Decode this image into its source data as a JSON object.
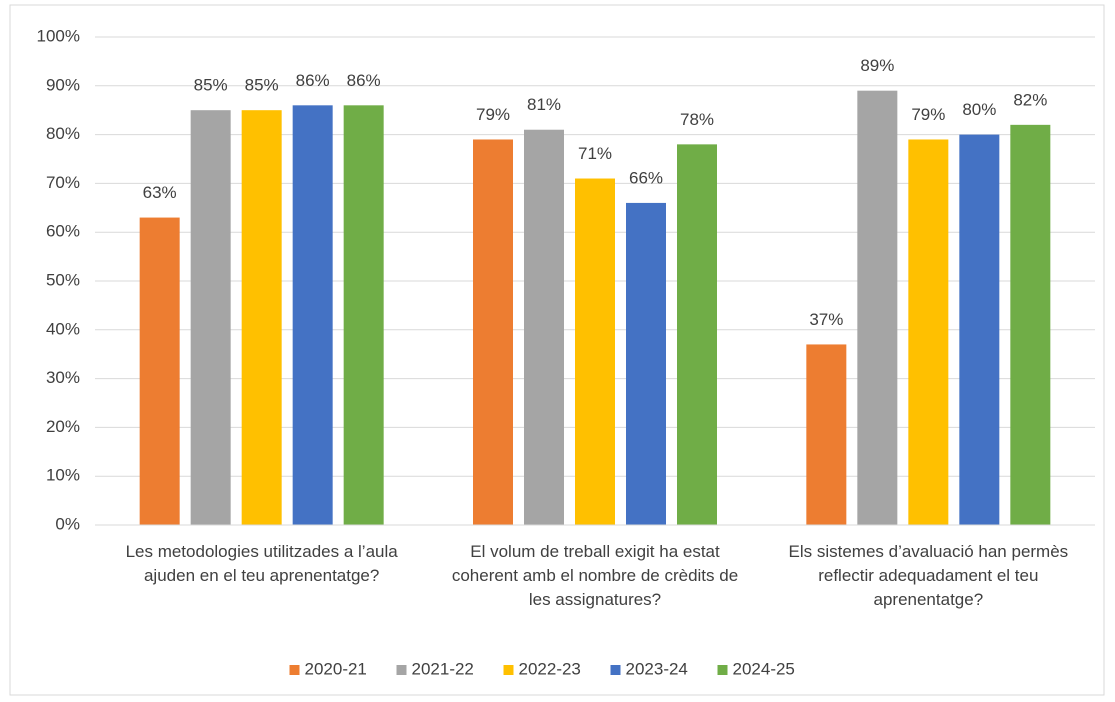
{
  "chart_data": {
    "type": "bar",
    "categories": [
      "Les metodologies utilitzades a l’aula ajuden en el teu aprenentatge?",
      "El volum de treball exigit ha estat coherent amb el nombre de crèdits de les assignatures?",
      "Els sistemes d’avaluació han permès reflectir adequadament el teu aprenentatge?"
    ],
    "series": [
      {
        "name": "2020-21",
        "color": "#ed7d31",
        "values": [
          63,
          79,
          37
        ],
        "value_labels": [
          "63%",
          "79%",
          "37%"
        ]
      },
      {
        "name": "2021-22",
        "color": "#a5a5a5",
        "values": [
          85,
          81,
          89
        ],
        "value_labels": [
          "85%",
          "81%",
          "89%"
        ]
      },
      {
        "name": "2022-23",
        "color": "#ffc000",
        "values": [
          85,
          71,
          79
        ],
        "value_labels": [
          "85%",
          "71%",
          "79%"
        ]
      },
      {
        "name": "2023-24",
        "color": "#4472c4",
        "values": [
          86,
          66,
          80
        ],
        "value_labels": [
          "86%",
          "66%",
          "80%"
        ]
      },
      {
        "name": "2024-25",
        "color": "#70ad47",
        "values": [
          86,
          78,
          82
        ],
        "value_labels": [
          "86%",
          "78%",
          "82%"
        ]
      }
    ],
    "ylim": [
      0,
      100
    ],
    "yticks": [
      {
        "value": 0,
        "label": "0%"
      },
      {
        "value": 10,
        "label": "10%"
      },
      {
        "value": 20,
        "label": "20%"
      },
      {
        "value": 30,
        "label": "30%"
      },
      {
        "value": 40,
        "label": "40%"
      },
      {
        "value": 50,
        "label": "50%"
      },
      {
        "value": 60,
        "label": "60%"
      },
      {
        "value": 70,
        "label": "70%"
      },
      {
        "value": 80,
        "label": "80%"
      },
      {
        "value": 90,
        "label": "90%"
      },
      {
        "value": 100,
        "label": "100%"
      }
    ],
    "grid": true,
    "legend": "bottom"
  }
}
